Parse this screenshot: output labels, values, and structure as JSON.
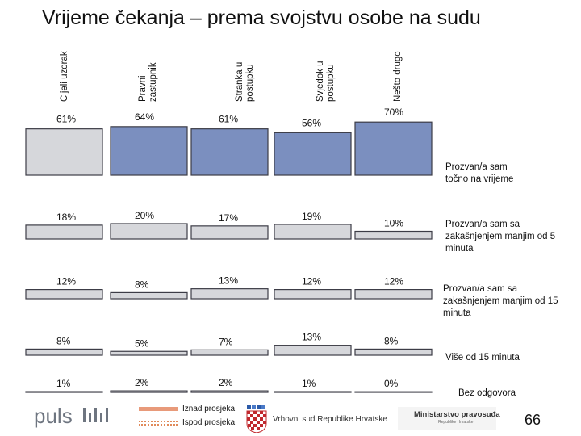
{
  "title": "Vrijeme čekanja – prema svojstvu osobe na sudu",
  "columns": [
    {
      "line1": "Cijeli uzorak",
      "line2": ""
    },
    {
      "line1": "Pravni",
      "line2": "zastupnik"
    },
    {
      "line1": "Stranka u",
      "line2": "postupku"
    },
    {
      "line1": "Svjedok u",
      "line2": "postupku"
    },
    {
      "line1": "Nešto drugo",
      "line2": ""
    }
  ],
  "colors": {
    "base_fill": "#d6d7db",
    "above_fill": "#7b8fbf",
    "bar_stroke": "#3c3c46",
    "above_marker": "#e89a7a",
    "below_marker": "#e08a5a"
  },
  "chart_data": {
    "type": "table",
    "categories": [
      "Cijeli uzorak",
      "Pravni zastupnik",
      "Stranka u postupku",
      "Svjedok u postupku",
      "Nešto drugo"
    ],
    "series": [
      {
        "name": "Prozvan/a sam točno na vrijeme",
        "values": [
          61,
          64,
          61,
          56,
          70
        ],
        "labels": [
          "61%",
          "64%",
          "61%",
          "56%",
          "70%"
        ],
        "above": [
          false,
          true,
          true,
          true,
          true
        ]
      },
      {
        "name": "Prozvan/a sam sa zakašnjenjem manjim od 5 minuta",
        "values": [
          18,
          20,
          17,
          19,
          10
        ],
        "labels": [
          "18%",
          "20%",
          "17%",
          "19%",
          "10%"
        ],
        "above": [
          false,
          false,
          false,
          false,
          false
        ]
      },
      {
        "name": "Prozvan/a sam sa zakašnjenjem manjim od 15 minuta",
        "values": [
          12,
          8,
          13,
          12,
          12
        ],
        "labels": [
          "12%",
          "8%",
          "13%",
          "12%",
          "12%"
        ],
        "above": [
          false,
          false,
          false,
          false,
          false
        ]
      },
      {
        "name": "Više od 15 minuta",
        "values": [
          8,
          5,
          7,
          13,
          8
        ],
        "labels": [
          "8%",
          "5%",
          "7%",
          "13%",
          "8%"
        ],
        "above": [
          false,
          false,
          false,
          false,
          false
        ]
      },
      {
        "name": "Bez odgovora",
        "values": [
          1,
          2,
          2,
          1,
          0
        ],
        "labels": [
          "1%",
          "2%",
          "2%",
          "1%",
          "0%"
        ],
        "above": [
          false,
          false,
          false,
          false,
          false
        ]
      }
    ]
  },
  "row_labels": {
    "r0": "Prozvan/a sam točno na vrijeme",
    "r1": "Prozvan/a sam sa zakašnjenjem manjim od 5 minuta",
    "r2": "Prozvan/a sam sa zakašnjenjem manjim od 15 minuta",
    "r3": "Više od 15 minuta",
    "r4": "Bez odgovora"
  },
  "legend": {
    "above": "Iznad prosjeka",
    "below": "Ispod prosjeka"
  },
  "footer": {
    "puls": "puls",
    "court": "Vrhovni sud Republike Hrvatske",
    "ministry": "Ministarstvo pravosuđa",
    "ministry_sub": "Republike Hrvatske",
    "page": "66"
  }
}
